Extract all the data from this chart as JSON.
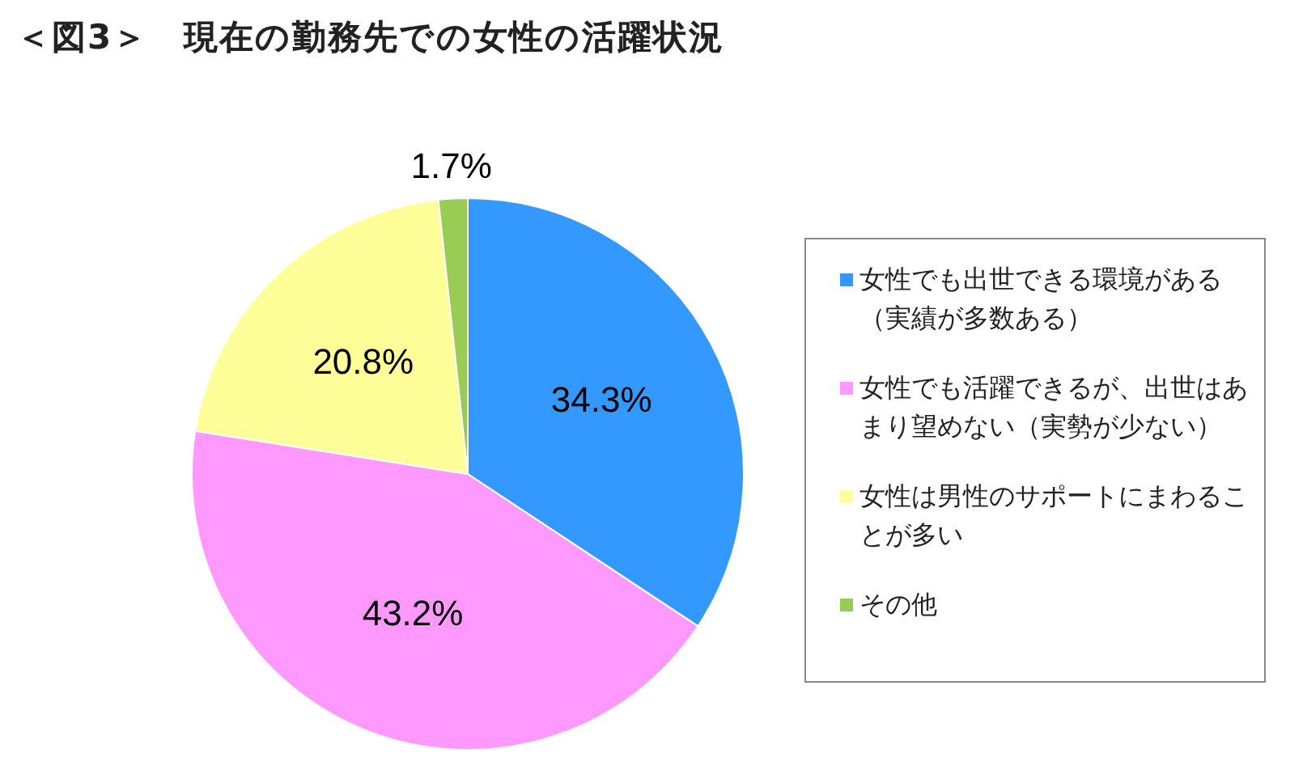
{
  "chart_data": {
    "type": "pie",
    "title": "＜図3＞　現在の勤務先での女性の活躍状況",
    "categories": [
      "女性でも出世できる環境がある（実績が多数ある）",
      "女性でも活躍できるが、出世はあまり望めない（実勢が少ない）",
      "女性は男性のサポートにまわることが多い",
      "その他"
    ],
    "values": [
      34.3,
      43.2,
      20.8,
      1.7
    ],
    "colors": [
      "#3399ff",
      "#ff99ff",
      "#ffff99",
      "#99cc55"
    ],
    "value_labels": [
      "34.3%",
      "43.2%",
      "20.8%",
      "1.7%"
    ],
    "legend": "right"
  }
}
